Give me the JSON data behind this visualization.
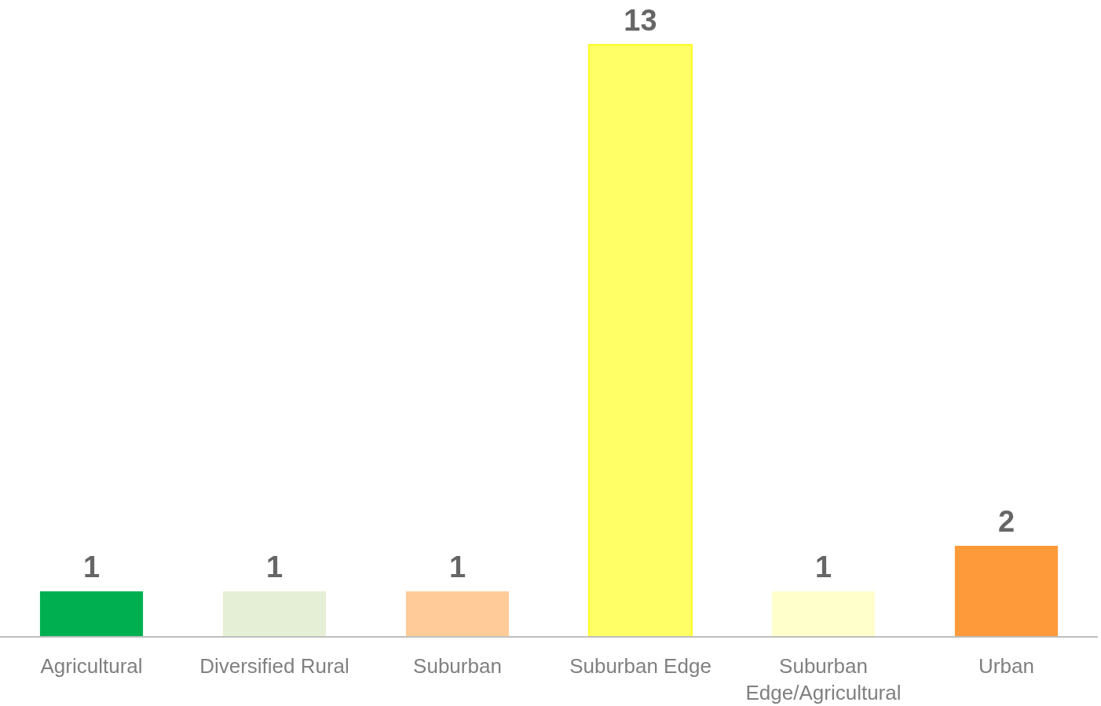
{
  "chart_data": {
    "type": "bar",
    "categories": [
      "Agricultural",
      "Diversified Rural",
      "Suburban",
      "Suburban Edge",
      "Suburban Edge/Agricultural",
      "Urban"
    ],
    "values": [
      1,
      1,
      1,
      13,
      1,
      2
    ],
    "colors": [
      "#00b050",
      "#e5efd5",
      "#ffcc99",
      "#ffff66",
      "#ffffcc",
      "#ff9a3a"
    ],
    "data_labels": true
  }
}
